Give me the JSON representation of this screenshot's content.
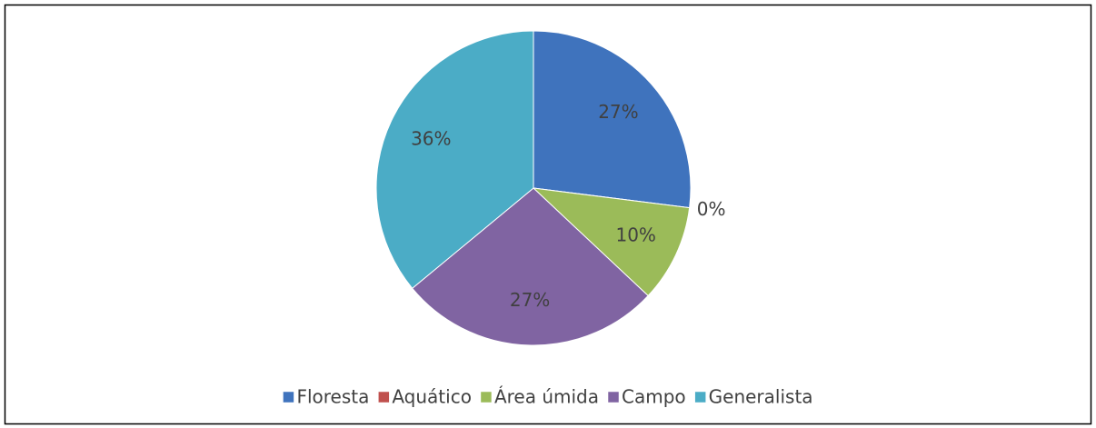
{
  "chart_data": {
    "type": "pie",
    "categories": [
      "Floresta",
      "Aquático",
      "Área úmida",
      "Campo",
      "Generalista"
    ],
    "values": [
      27,
      0,
      10,
      27,
      36
    ],
    "value_labels": [
      "27%",
      "0%",
      "10%",
      "27%",
      "36%"
    ],
    "colors": [
      "#3f73bd",
      "#c0504d",
      "#9bbb59",
      "#8064a2",
      "#4bacc6"
    ],
    "legend": "bottom"
  }
}
